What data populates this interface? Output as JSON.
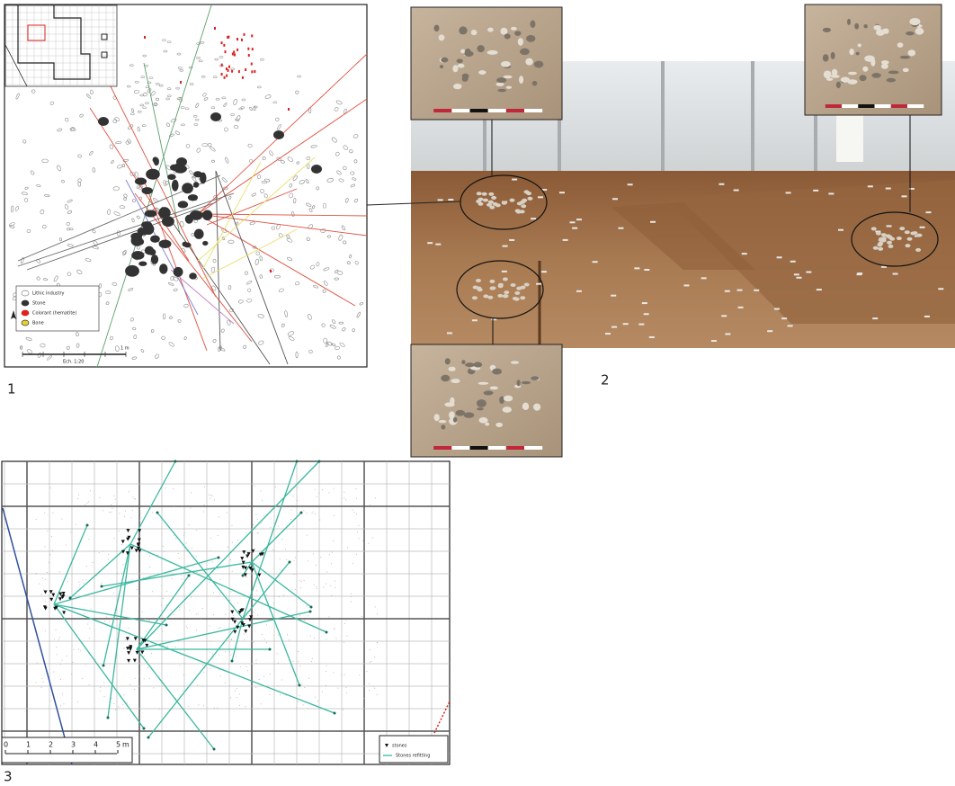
{
  "panels": [
    {
      "label": "1",
      "legend": [
        "Lithic industry",
        "Stone",
        "Colorant (hematite)",
        "Bone"
      ],
      "scale": {
        "start": "0",
        "end": "1 m",
        "ratio": "Ech. 1:20"
      }
    },
    {
      "label": "2"
    },
    {
      "label": "3",
      "legend": [
        "stones",
        "Stones refitting"
      ],
      "scale": {
        "ticks": [
          "0",
          "1",
          "2",
          "3",
          "4",
          "5"
        ],
        "unit": "m"
      }
    }
  ]
}
